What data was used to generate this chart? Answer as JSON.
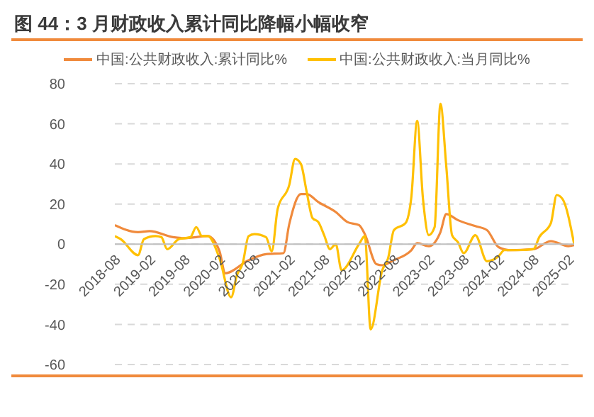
{
  "chart_data": {
    "type": "line",
    "title": "图 44：3 月财政收入累计同比降幅小幅收窄",
    "xlim": [
      "2018-08",
      "2025-03"
    ],
    "xticks": [
      "2018-08",
      "2019-02",
      "2019-08",
      "2020-02",
      "2020-08",
      "2021-02",
      "2021-08",
      "2022-02",
      "2022-08",
      "2023-02",
      "2023-08",
      "2024-02",
      "2024-08",
      "2025-02"
    ],
    "ylim": [
      -60,
      80
    ],
    "yticks": [
      -60,
      -40,
      -20,
      0,
      20,
      40,
      60,
      80
    ],
    "grid": "y",
    "legend": "top",
    "marker": "none",
    "line_style": "solid",
    "series": [
      {
        "name": "中国:公共财政收入:累计同比%",
        "color": "#f08a3c",
        "x": [
          "2018-08",
          "2018-12",
          "2019-02",
          "2019-06",
          "2019-08",
          "2019-12",
          "2020-02",
          "2020-03",
          "2020-07",
          "2020-10",
          "2021-01",
          "2021-02",
          "2021-04",
          "2021-05",
          "2021-07",
          "2021-10",
          "2021-12",
          "2022-02",
          "2022-03",
          "2022-05",
          "2022-06",
          "2022-08",
          "2022-11",
          "2022-12",
          "2023-02",
          "2023-04",
          "2023-05",
          "2023-07",
          "2023-10",
          "2023-12",
          "2024-02",
          "2024-04",
          "2024-08",
          "2024-11",
          "2025-02",
          "2025-03"
        ],
        "values": [
          9.5,
          6,
          6.5,
          3.5,
          3,
          4,
          -3.5,
          -14.5,
          -8,
          -5,
          -4.5,
          10,
          25,
          25,
          21,
          16,
          11,
          9.5,
          5,
          -10,
          -10.5,
          -8,
          -3,
          0.5,
          -1,
          6,
          15,
          12,
          9,
          7,
          -1.5,
          -3,
          -2.5,
          1.5,
          -1,
          -0.5
        ]
      },
      {
        "name": "中国:公共财政收入:当月同比%",
        "color": "#ffc000",
        "x": [
          "2018-08",
          "2018-09",
          "2018-12",
          "2019-01",
          "2019-03",
          "2019-04",
          "2019-05",
          "2019-07",
          "2019-09",
          "2019-10",
          "2019-11",
          "2019-12",
          "2020-02",
          "2020-04",
          "2020-05",
          "2020-06",
          "2020-07",
          "2020-08",
          "2020-10",
          "2020-11",
          "2020-12",
          "2021-02",
          "2021-03",
          "2021-04",
          "2021-05",
          "2021-06",
          "2021-07",
          "2021-08",
          "2021-09",
          "2021-10",
          "2021-11",
          "2022-02",
          "2022-03",
          "2022-04",
          "2022-06",
          "2022-07",
          "2022-08",
          "2022-10",
          "2022-11",
          "2022-12",
          "2023-01",
          "2023-02",
          "2023-03",
          "2023-04",
          "2023-05",
          "2023-06",
          "2023-07",
          "2023-08",
          "2023-10",
          "2023-12",
          "2024-02",
          "2024-03",
          "2024-05",
          "2024-08",
          "2024-09",
          "2024-11",
          "2024-12",
          "2025-01",
          "2025-03"
        ],
        "values": [
          4,
          2.5,
          -5.5,
          2.5,
          4,
          3.5,
          -2.5,
          2.5,
          3.5,
          8.5,
          4,
          4,
          -7,
          -26.5,
          -15.5,
          -9.5,
          4,
          5,
          3.5,
          -3.5,
          17.5,
          29.5,
          42.5,
          40,
          26,
          13,
          11,
          4.5,
          -2.5,
          0,
          -13,
          0,
          4,
          -42.5,
          -13,
          -7,
          7,
          10.5,
          23.5,
          61.5,
          22.5,
          4.5,
          8.5,
          70,
          39,
          4.5,
          1,
          -4.5,
          4.5,
          -8.5,
          -6,
          -3,
          -3,
          -2.5,
          3.5,
          10.5,
          24.5,
          22.5,
          0
        ]
      }
    ]
  }
}
